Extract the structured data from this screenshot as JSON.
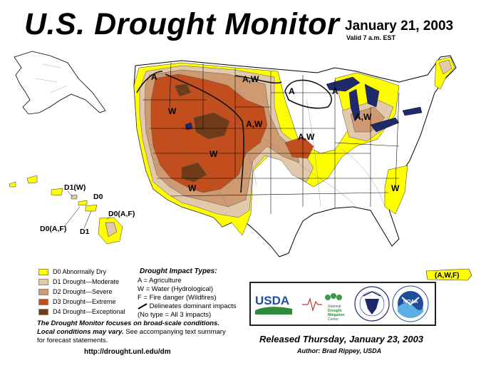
{
  "header": {
    "title": "U.S. Drought Monitor",
    "date": "January 21, 2003",
    "valid": "Valid 7 a.m. EST"
  },
  "colors": {
    "D0": "#ffff00",
    "D1": "#e3c9ab",
    "D2": "#cf9a72",
    "D3": "#c24e1d",
    "D4": "#6e3a18",
    "water": "#1f2a6b",
    "border": "#000000"
  },
  "legend": {
    "items": [
      {
        "code": "D0",
        "label": "D0 Abnormally Dry"
      },
      {
        "code": "D1",
        "label": "D1 Drought—Moderate"
      },
      {
        "code": "D2",
        "label": "D2 Drought—Severe"
      },
      {
        "code": "D3",
        "label": "D3 Drought—Extreme"
      },
      {
        "code": "D4",
        "label": "D4 Drought—Exceptional"
      }
    ]
  },
  "impacts": {
    "title": "Drought  Impact  Types:",
    "lines": [
      "A = Agriculture",
      "W = Water (Hydrological)",
      "F = Fire danger (Wildfires)",
      "Delineates dominant impacts",
      "(No type = All 3 impacts)"
    ]
  },
  "map_labels": {
    "a_nw": "A",
    "w_montana": "W",
    "aw_nd": "A,W",
    "a_mn": "A",
    "a_wi": "A",
    "aw_dakotas": "A,W",
    "aw_mi": "A,W",
    "aw_iowa": "A,W",
    "w_wy": "W",
    "w_az": "W",
    "w_se": "W",
    "hawaii_d1w": "D1(W)",
    "hawaii_d0": "D0",
    "hawaii_d0af_right": "D0(A,F)",
    "hawaii_d0af_left": "D0(A,F)",
    "hawaii_d1": "D1",
    "puerto_rico": "(A,W,F)"
  },
  "footer": {
    "focus_line1": "The Drought Monitor focuses on broad-scale conditions.",
    "focus_line2_bold": "Local conditions may vary.",
    "focus_line2_rest": " See accompanying text summary",
    "focus_line3": "for forecast statements.",
    "url": "http://drought.unl.edu/dm",
    "released": "Released Thursday, January 23, 2003",
    "author": "Author:  Brad Rippey, USDA"
  },
  "logos": {
    "usda": "USDA",
    "ndmc_line1": "National",
    "ndmc_line2": "Drought",
    "ndmc_line3": "Mitigation",
    "ndmc_line4": "Center",
    "noaa": "NOAA"
  }
}
